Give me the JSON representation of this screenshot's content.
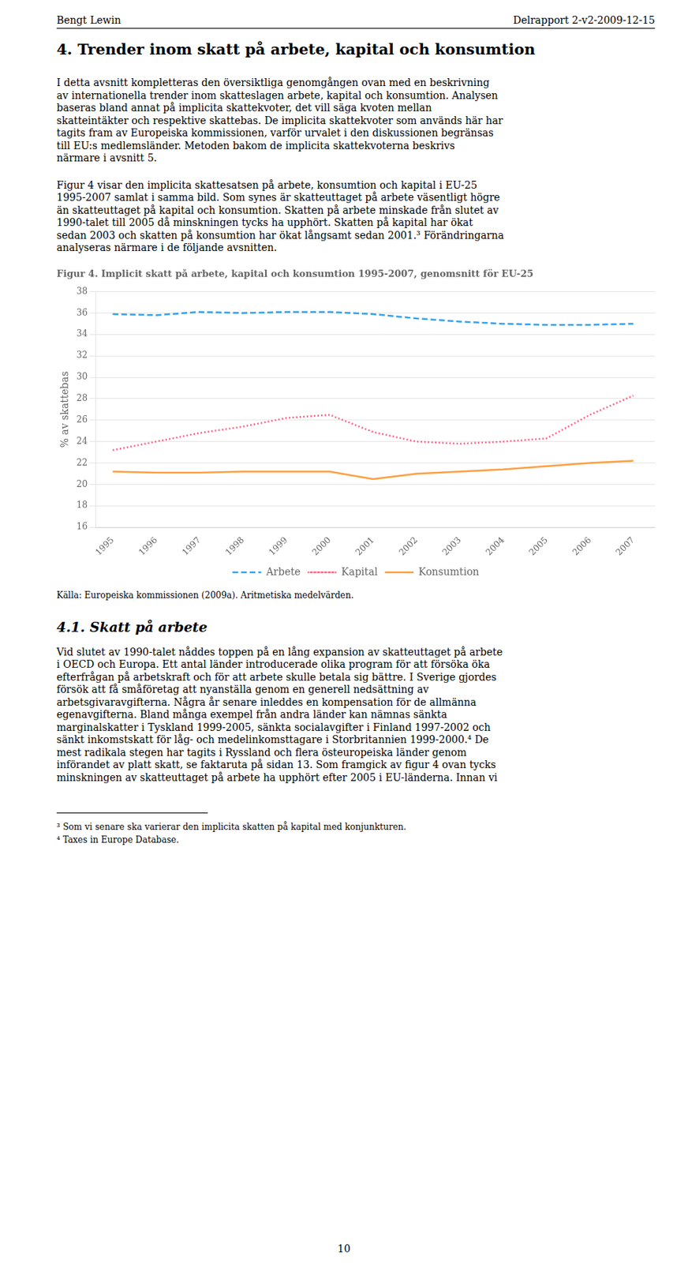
{
  "page": {
    "header_left": "Bengt Lewin",
    "header_right": "Delrapport 2-v2-2009-12-15",
    "section_title": "4. Trender inom skatt på arbete, kapital och konsumtion",
    "paragraphs_before": [
      [
        "I detta avsnitt kompletteras den översiktliga genomgången ovan med en beskrivning",
        "av internationella trender inom skatteslagen arbete, kapital och konsumtion. Analysen",
        "baseras bland annat på implicita skattekvoter, det vill säga kvoten mellan",
        "skatteintäkter och respektive skattebas. De implicita skattekvoter som används här har",
        "tagits fram av Europeiska kommissionen, varför urvalet i den diskussionen begränsas",
        "till EU:s medlemsländer. Metoden bakom de implicita skattekvoterna beskrivs",
        "närmare i avsnitt 5."
      ],
      [
        "Figur 4 visar den implicita skattesatsen på arbete, konsumtion och kapital i EU-25",
        "1995-2007 samlat i samma bild. Som synes är skatteuttaget på arbete väsentligt högre",
        "än skatteuttaget på kapital och konsumtion. Skatten på arbete minskade från slutet av",
        "1990-talet till 2005 då minskningen tycks ha upphört. Skatten på kapital har ökat",
        "sedan 2003 och skatten på konsumtion har ökat långsamt sedan 2001.³ Förändringarna",
        "analyseras närmare i de följande avsnitten."
      ]
    ],
    "source_note": "Källa: Europeiska kommissionen (2009a). Aritmetiska medelvärden.",
    "section_41_title": "4.1. Skatt på arbete",
    "paragraphs_after": [
      [
        "Vid slutet av 1990-talet nåddes toppen på en lång expansion av skatteuttaget på arbete",
        "i OECD och Europa. Ett antal länder introducerade olika program för att försöka öka",
        "efterfrågan på arbetskraft och för att arbete skulle betala sig bättre. I Sverige gjordes",
        "försök att få småföretag att nyanställa genom en generell nedsättning av",
        "arbetsgivaravgifterna. Några år senare inleddes en kompensation för de allmänna",
        "egenavgifterna. Bland många exempel från andra länder kan nämnas sänkta",
        "marginalskatter i Tyskland 1999-2005, sänkta socialavgifter i Finland 1997-2002 och",
        "sänkt inkomstskatt för låg- och medelinkomsttagare i Storbritannien 1999-2000.⁴ De",
        "mest radikala stegen har tagits i Ryssland och flera östeuropeiska länder genom",
        "införandet av platt skatt, se faktaruta på sidan 13. Som framgick av figur 4 ovan tycks",
        "minskningen av skatteuttaget på arbete ha upphört efter 2005 i EU-länderna. Innan vi"
      ]
    ],
    "footnotes": [
      "³ Som vi senare ska varierar den implicita skatten på kapital med konjunkturen.",
      "⁴ Taxes in Europe Database."
    ],
    "page_number": "10"
  },
  "chart_data": {
    "type": "line",
    "title": "Figur 4. Implicit skatt på arbete, kapital och konsumtion 1995-2007, genomsnitt för EU-25",
    "y_label": "% av skattebas",
    "x": [
      1995,
      1996,
      1997,
      1998,
      1999,
      2000,
      2001,
      2002,
      2003,
      2004,
      2005,
      2006,
      2007
    ],
    "series": [
      {
        "name": "Arbete",
        "line_style": "dashed",
        "values": [
          35.9,
          35.8,
          36.1,
          36.0,
          36.1,
          36.1,
          35.9,
          35.5,
          35.2,
          35.0,
          34.9,
          34.9,
          35.0
        ]
      },
      {
        "name": "Kapital",
        "line_style": "dotted",
        "values": [
          23.2,
          24.0,
          24.8,
          25.4,
          26.2,
          26.5,
          24.9,
          24.0,
          23.8,
          24.0,
          24.3,
          26.5,
          28.3
        ]
      },
      {
        "name": "Konsumtion",
        "line_style": "solid",
        "values": [
          21.2,
          21.1,
          21.1,
          21.2,
          21.2,
          21.2,
          20.5,
          21.0,
          21.2,
          21.4,
          21.7,
          22.0,
          22.2
        ]
      }
    ],
    "xlim": [
      1994.6,
      2007.5
    ],
    "xticks": [
      1995,
      1996,
      1997,
      1998,
      1999,
      2000,
      2001,
      2002,
      2003,
      2004,
      2005,
      2006,
      2007
    ],
    "ylim": [
      16,
      38
    ],
    "yticks": [
      16,
      18,
      20,
      22,
      24,
      26,
      28,
      30,
      32,
      34,
      36,
      38
    ],
    "grid": "y",
    "legend": "bottom"
  }
}
